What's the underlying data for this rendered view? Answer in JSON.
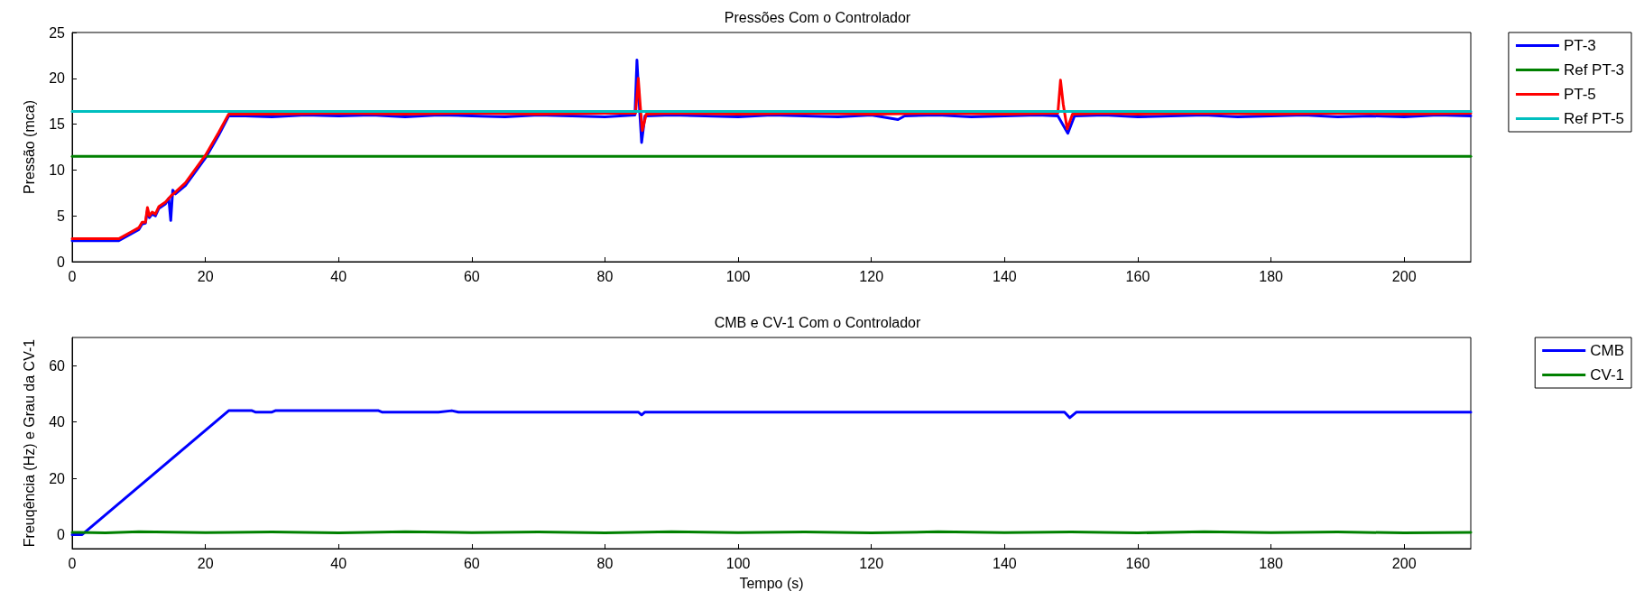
{
  "chart_data": [
    {
      "type": "line",
      "title": "Pressões Com o Controlador",
      "ylabel": "Pressão (mca)",
      "xlim": [
        0,
        210
      ],
      "xticks": [
        0,
        20,
        40,
        60,
        80,
        100,
        120,
        140,
        160,
        180,
        200
      ],
      "ylim": [
        0,
        25
      ],
      "yticks": [
        0,
        5,
        10,
        15,
        20,
        25
      ],
      "grid": false,
      "legend": "top right",
      "marker": "none",
      "line_style": "solid",
      "series": [
        {
          "name": "PT-3",
          "color": "#0000ff",
          "x": [
            0,
            7,
            10,
            10.5,
            11,
            11.3,
            11.6,
            12,
            12.5,
            13,
            14,
            14.5,
            14.8,
            15.1,
            15.5,
            17,
            20,
            22,
            23.5,
            26,
            30,
            35,
            40,
            45,
            50,
            55,
            60,
            65,
            70,
            75,
            80,
            84.5,
            84.8,
            85.2,
            85.5,
            86,
            90,
            95,
            100,
            105,
            110,
            115,
            120,
            124,
            125,
            130,
            135,
            140,
            145,
            148,
            149.5,
            150.5,
            155,
            160,
            165,
            170,
            175,
            180,
            185,
            190,
            195,
            200,
            205,
            210
          ],
          "values": [
            2.3,
            2.3,
            3.5,
            4.1,
            4.2,
            5.6,
            4.8,
            5.2,
            5,
            5.8,
            6.3,
            6.9,
            4.5,
            7.8,
            7.4,
            8.3,
            11.3,
            13.8,
            15.9,
            15.9,
            15.8,
            16,
            15.9,
            16,
            15.8,
            16,
            15.9,
            15.8,
            16,
            15.9,
            15.8,
            16,
            22,
            16.5,
            13,
            15.9,
            16,
            15.9,
            15.8,
            16,
            15.9,
            15.8,
            16,
            15.5,
            15.9,
            16,
            15.8,
            15.9,
            16,
            15.9,
            14,
            15.9,
            16,
            15.8,
            15.9,
            16,
            15.8,
            15.9,
            16,
            15.8,
            15.9,
            15.8,
            16,
            15.9
          ]
        },
        {
          "name": "Ref PT-3",
          "color": "#008000",
          "x": [
            0,
            210
          ],
          "values": [
            11.5,
            11.5
          ]
        },
        {
          "name": "PT-5",
          "color": "#ff0000",
          "x": [
            0,
            7,
            10,
            10.5,
            11,
            11.3,
            11.6,
            12,
            12.5,
            13,
            14,
            15,
            15.5,
            17,
            20,
            22,
            23.5,
            30,
            40,
            50,
            60,
            70,
            80,
            84.6,
            85,
            85.3,
            85.6,
            86.2,
            90,
            100,
            110,
            120,
            130,
            140,
            148,
            148.4,
            148.8,
            149.4,
            150.2,
            155,
            160,
            170,
            180,
            190,
            200,
            210
          ],
          "values": [
            2.5,
            2.5,
            3.7,
            4.3,
            4.3,
            5.9,
            5,
            5.4,
            5.2,
            6,
            6.5,
            7.3,
            7.6,
            8.6,
            11.6,
            14.1,
            16.1,
            16.1,
            16.2,
            16.1,
            16.2,
            16.1,
            16.2,
            16.2,
            20,
            17,
            14.3,
            16.1,
            16.2,
            16.1,
            16.2,
            16.1,
            16.2,
            16.1,
            16.2,
            19.8,
            17.2,
            14.5,
            16.1,
            16.2,
            16.1,
            16.2,
            16.1,
            16.2,
            16.1,
            16.2
          ]
        },
        {
          "name": "Ref PT-5",
          "color": "#00bfbf",
          "x": [
            0,
            210
          ],
          "values": [
            16.4,
            16.4
          ]
        }
      ]
    },
    {
      "type": "line",
      "title": "CMB e CV-1 Com o Controlador",
      "xlabel": "Tempo (s)",
      "ylabel": "Freuqência (Hz) e Grau da CV-1",
      "xlim": [
        0,
        210
      ],
      "xticks": [
        0,
        20,
        40,
        60,
        80,
        100,
        120,
        140,
        160,
        180,
        200
      ],
      "ylim": [
        -5,
        70
      ],
      "yticks": [
        0,
        20,
        40,
        60
      ],
      "grid": false,
      "legend": "top right",
      "marker": "none",
      "line_style": "solid",
      "series": [
        {
          "name": "CMB",
          "color": "#0000ff",
          "x": [
            0,
            1.5,
            23.5,
            27,
            27.5,
            30,
            30.5,
            46,
            46.5,
            55,
            57,
            58,
            85,
            85.5,
            86,
            149,
            149.8,
            150.8,
            210
          ],
          "values": [
            0,
            0,
            44,
            44,
            43.5,
            43.5,
            44,
            44,
            43.5,
            43.5,
            44,
            43.5,
            43.5,
            42.5,
            43.5,
            43.5,
            41.5,
            43.5,
            43.5
          ]
        },
        {
          "name": "CV-1",
          "color": "#008000",
          "x": [
            0,
            1,
            5,
            10,
            20,
            30,
            40,
            50,
            60,
            70,
            80,
            90,
            100,
            110,
            120,
            130,
            140,
            150,
            160,
            170,
            180,
            190,
            200,
            210
          ],
          "values": [
            0.8,
            0.8,
            0.6,
            1,
            0.7,
            0.9,
            0.6,
            1,
            0.7,
            0.9,
            0.6,
            1,
            0.7,
            0.9,
            0.6,
            1,
            0.7,
            0.9,
            0.6,
            1,
            0.7,
            0.9,
            0.6,
            0.8
          ]
        }
      ]
    }
  ]
}
